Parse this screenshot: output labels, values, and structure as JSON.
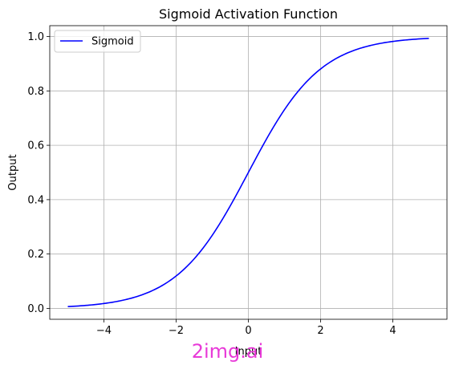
{
  "chart_data": {
    "type": "line",
    "title": "Sigmoid Activation Function",
    "xlabel": "Input",
    "ylabel": "Output",
    "xlim": [
      -5.5,
      5.5
    ],
    "ylim": [
      -0.04,
      1.04
    ],
    "xticks": [
      -4,
      -2,
      0,
      2,
      4
    ],
    "xtick_labels": [
      "−4",
      "−2",
      "0",
      "2",
      "4"
    ],
    "yticks": [
      0.0,
      0.2,
      0.4,
      0.6,
      0.8,
      1.0
    ],
    "ytick_labels": [
      "0.0",
      "0.2",
      "0.4",
      "0.6",
      "0.8",
      "1.0"
    ],
    "grid": true,
    "legend_placement": "upper-left",
    "series": [
      {
        "name": "Sigmoid",
        "color": "#0000ff",
        "x": [
          -5,
          -4.5,
          -4,
          -3.5,
          -3,
          -2.5,
          -2,
          -1.5,
          -1,
          -0.5,
          0,
          0.5,
          1,
          1.5,
          2,
          2.5,
          3,
          3.5,
          4,
          4.5,
          5
        ],
        "y": [
          0.0067,
          0.011,
          0.018,
          0.0293,
          0.0474,
          0.0759,
          0.1192,
          0.1824,
          0.2689,
          0.3775,
          0.5,
          0.6225,
          0.7311,
          0.8176,
          0.8808,
          0.9241,
          0.9526,
          0.9707,
          0.982,
          0.989,
          0.9933
        ]
      }
    ]
  },
  "watermark": {
    "text": "2img.ai",
    "color": "#e83ad8"
  }
}
